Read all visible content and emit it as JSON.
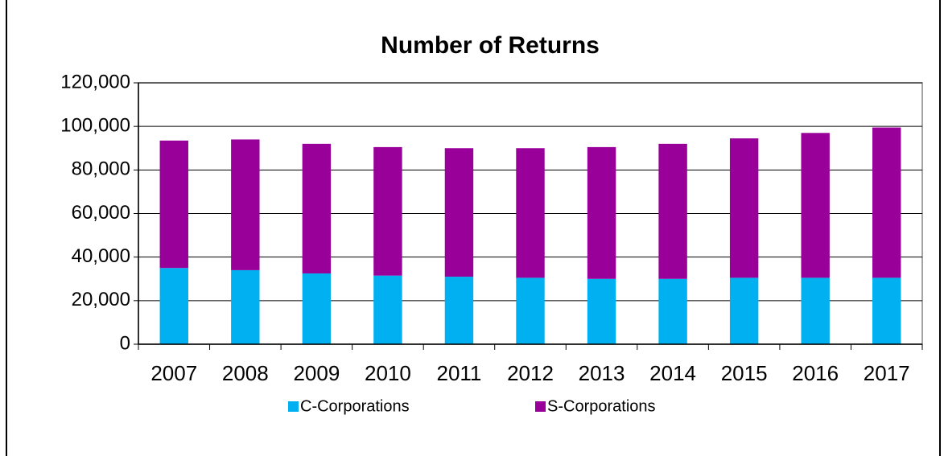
{
  "chart_data": {
    "type": "stacked_bar",
    "title": "Number of Returns",
    "categories": [
      "2007",
      "2008",
      "2009",
      "2010",
      "2011",
      "2012",
      "2013",
      "2014",
      "2015",
      "2016",
      "2017"
    ],
    "series": [
      {
        "name": "C-Corporations",
        "color": "#00b0f0",
        "values": [
          35000,
          34000,
          32500,
          31500,
          31000,
          30500,
          30000,
          30000,
          30500,
          30500,
          30500
        ]
      },
      {
        "name": "S-Corporations",
        "color": "#990099",
        "values": [
          58500,
          60000,
          59500,
          59000,
          59000,
          59500,
          60500,
          62000,
          64000,
          66500,
          69000
        ]
      }
    ],
    "ylim": [
      0,
      120000
    ],
    "yticks": [
      0,
      {
        "value": 20000,
        "label": "20,000"
      },
      {
        "value": 40000,
        "label": "40,000"
      },
      {
        "value": 60000,
        "label": "60,000"
      },
      {
        "value": 80000,
        "label": "80,000"
      },
      {
        "value": 100000,
        "label": "100,000"
      },
      {
        "value": 120000,
        "label": "120,000"
      }
    ],
    "grid": true,
    "legend": "bottom"
  }
}
